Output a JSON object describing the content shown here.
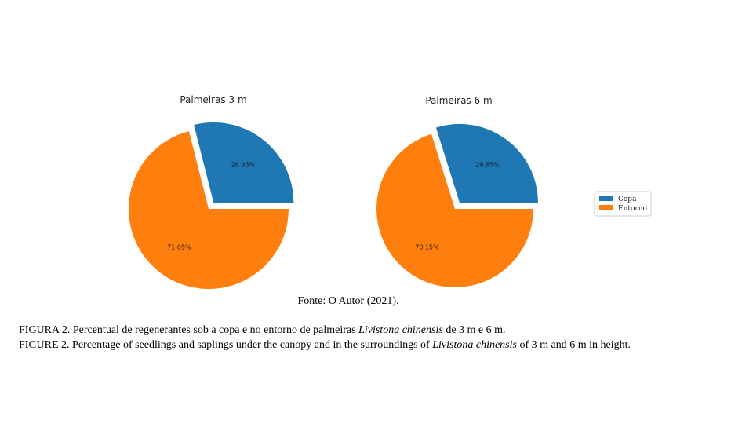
{
  "chart_data": [
    {
      "type": "pie",
      "title": "Palmeiras 3 m",
      "labels": [
        "Copa",
        "Entorno"
      ],
      "values": [
        28.95,
        71.05
      ],
      "value_labels": [
        "28.95%",
        "71.05%"
      ],
      "colors": [
        "#1f77b4",
        "#ff7f0e"
      ],
      "explode": [
        0.1,
        0
      ]
    },
    {
      "type": "pie",
      "title": "Palmeiras 6 m",
      "labels": [
        "Copa",
        "Entorno"
      ],
      "values": [
        29.85,
        70.15
      ],
      "value_labels": [
        "29.85%",
        "70.15%"
      ],
      "colors": [
        "#1f77b4",
        "#ff7f0e"
      ],
      "explode": [
        0.1,
        0
      ]
    }
  ],
  "legend": {
    "placement": "right",
    "entries": [
      {
        "label": "Copa",
        "color": "#1f77b4"
      },
      {
        "label": "Entorno",
        "color": "#ff7f0e"
      }
    ]
  },
  "source": "Fonte: O Autor (2021).",
  "caption_pt": {
    "before": "FIGURA 2. Percentual de regenerantes sob a copa e no entorno de palmeiras ",
    "species": "Livistona chinensis",
    "after": " de 3 m e 6 m."
  },
  "caption_en": {
    "before": "FIGURE 2. Percentage of seedlings and saplings under the canopy and in the surroundings of ",
    "species": "Livistona chinensis",
    "after": " of 3 m and 6 m in height."
  }
}
